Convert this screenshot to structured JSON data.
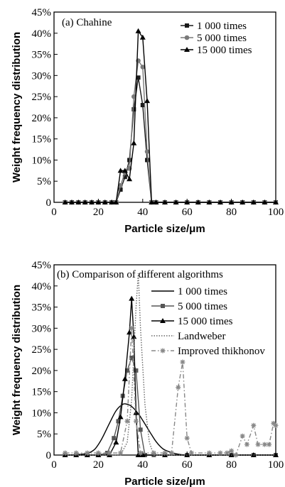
{
  "chart_data": [
    {
      "type": "line",
      "title": "(a)  Chahine",
      "xlabel": "Particle size/μm",
      "ylabel": "Weight frequency distribution",
      "xlim": [
        0,
        100
      ],
      "ylim": [
        0,
        45
      ],
      "x_ticks": [
        "0",
        "20",
        "40",
        "60",
        "80",
        "100"
      ],
      "y_ticks": [
        "0",
        "5%",
        "10%",
        "15%",
        "20%",
        "25%",
        "30%",
        "35%",
        "40%",
        "45%"
      ],
      "legend_position": "top-right",
      "series": [
        {
          "name": "1 000 times",
          "marker": "square",
          "color": "#1a1a1a",
          "points": [
            [
              5,
              0
            ],
            [
              8,
              0
            ],
            [
              11,
              0
            ],
            [
              14,
              0
            ],
            [
              17,
              0
            ],
            [
              20,
              0
            ],
            [
              23,
              0
            ],
            [
              26,
              0
            ],
            [
              28,
              0
            ],
            [
              30,
              3
            ],
            [
              32,
              6
            ],
            [
              34,
              10
            ],
            [
              36,
              22
            ],
            [
              38,
              29.5
            ],
            [
              40,
              23
            ],
            [
              42,
              10
            ],
            [
              44,
              0
            ],
            [
              46,
              0
            ],
            [
              50,
              0
            ],
            [
              55,
              0
            ],
            [
              60,
              0
            ],
            [
              65,
              0
            ],
            [
              70,
              0
            ],
            [
              75,
              0
            ],
            [
              80,
              0
            ],
            [
              85,
              0
            ],
            [
              90,
              0
            ],
            [
              95,
              0
            ],
            [
              100,
              0
            ]
          ]
        },
        {
          "name": "5 000 times",
          "marker": "circle",
          "color": "#7a7a7a",
          "points": [
            [
              5,
              0
            ],
            [
              8,
              0
            ],
            [
              11,
              0
            ],
            [
              14,
              0
            ],
            [
              17,
              0
            ],
            [
              20,
              0
            ],
            [
              23,
              0
            ],
            [
              26,
              0
            ],
            [
              28,
              0
            ],
            [
              30,
              4
            ],
            [
              32,
              7
            ],
            [
              34,
              8
            ],
            [
              36,
              25
            ],
            [
              38,
              33.5
            ],
            [
              40,
              32
            ],
            [
              42,
              12
            ],
            [
              44,
              0
            ],
            [
              46,
              0
            ],
            [
              50,
              0
            ],
            [
              55,
              0
            ],
            [
              60,
              0
            ],
            [
              65,
              0
            ],
            [
              70,
              0
            ],
            [
              75,
              0
            ],
            [
              80,
              0
            ],
            [
              85,
              0
            ],
            [
              90,
              0
            ],
            [
              95,
              0
            ],
            [
              100,
              0
            ]
          ]
        },
        {
          "name": "15 000 times",
          "marker": "triangle",
          "color": "#000000",
          "points": [
            [
              5,
              0
            ],
            [
              8,
              0
            ],
            [
              11,
              0
            ],
            [
              14,
              0
            ],
            [
              17,
              0
            ],
            [
              20,
              0
            ],
            [
              23,
              0
            ],
            [
              26,
              0
            ],
            [
              28,
              0
            ],
            [
              30,
              7.5
            ],
            [
              32,
              7.5
            ],
            [
              34,
              5.5
            ],
            [
              36,
              14
            ],
            [
              38,
              40.5
            ],
            [
              40,
              39
            ],
            [
              42,
              24
            ],
            [
              44,
              0
            ],
            [
              46,
              0
            ],
            [
              50,
              0
            ],
            [
              55,
              0
            ],
            [
              60,
              0
            ],
            [
              65,
              0
            ],
            [
              70,
              0
            ],
            [
              75,
              0
            ],
            [
              80,
              0
            ],
            [
              85,
              0
            ],
            [
              90,
              0
            ],
            [
              95,
              0
            ],
            [
              100,
              0
            ]
          ]
        }
      ]
    },
    {
      "type": "line",
      "title": "(b) Comparison of different algorithms",
      "xlabel": "Particle size/μm",
      "ylabel": "Weight frequency distribution",
      "xlim": [
        0,
        100
      ],
      "ylim": [
        0,
        45
      ],
      "x_ticks": [
        "0",
        "20",
        "40",
        "60",
        "80",
        "100"
      ],
      "y_ticks": [
        "0",
        "5%",
        "10%",
        "15%",
        "20%",
        "25%",
        "30%",
        "35%",
        "40%",
        "45%"
      ],
      "legend_position": "top-right",
      "series": [
        {
          "name": "1 000 times",
          "marker": "none",
          "style": "solid",
          "color": "#000000",
          "points": [
            [
              5,
              0
            ],
            [
              10,
              0.1
            ],
            [
              15,
              0.4
            ],
            [
              18,
              1.2
            ],
            [
              20,
              2.5
            ],
            [
              22,
              4.3
            ],
            [
              25,
              7.5
            ],
            [
              28,
              10.5
            ],
            [
              31,
              12
            ],
            [
              33,
              12
            ],
            [
              35,
              11.5
            ],
            [
              38,
              9.8
            ],
            [
              40,
              8.2
            ],
            [
              42,
              6.5
            ],
            [
              44,
              4.8
            ],
            [
              46,
              3.2
            ],
            [
              48,
              2
            ],
            [
              50,
              1.2
            ],
            [
              55,
              0.3
            ],
            [
              60,
              0
            ],
            [
              70,
              0
            ],
            [
              80,
              0
            ],
            [
              90,
              0
            ],
            [
              100,
              0
            ]
          ]
        },
        {
          "name": "5 000 times",
          "marker": "square",
          "style": "solid",
          "color": "#555555",
          "points": [
            [
              5,
              0
            ],
            [
              10,
              0
            ],
            [
              15,
              0
            ],
            [
              20,
              0
            ],
            [
              24,
              0.5
            ],
            [
              27,
              4
            ],
            [
              29,
              8
            ],
            [
              31,
              14
            ],
            [
              33,
              20
            ],
            [
              35,
              23
            ],
            [
              37,
              20
            ],
            [
              39,
              6
            ],
            [
              41,
              0
            ],
            [
              45,
              0
            ],
            [
              50,
              0
            ],
            [
              60,
              0
            ],
            [
              70,
              0
            ],
            [
              80,
              0
            ],
            [
              90,
              0
            ],
            [
              100,
              0
            ]
          ]
        },
        {
          "name": "15 000 times",
          "marker": "triangle",
          "style": "solid",
          "color": "#000000",
          "points": [
            [
              5,
              0
            ],
            [
              10,
              0
            ],
            [
              15,
              0
            ],
            [
              20,
              0
            ],
            [
              25,
              0
            ],
            [
              28,
              3
            ],
            [
              30,
              9
            ],
            [
              32,
              18
            ],
            [
              34,
              29
            ],
            [
              35,
              37
            ],
            [
              36,
              28
            ],
            [
              37,
              10
            ],
            [
              38,
              0
            ],
            [
              40,
              0
            ],
            [
              50,
              0
            ],
            [
              60,
              0
            ],
            [
              70,
              0
            ],
            [
              80,
              0
            ],
            [
              90,
              0
            ],
            [
              100,
              0
            ]
          ]
        },
        {
          "name": "Landweber",
          "marker": "none",
          "style": "dotted",
          "color": "#666666",
          "points": [
            [
              5,
              0
            ],
            [
              25,
              0
            ],
            [
              30,
              0
            ],
            [
              33,
              3
            ],
            [
              35,
              13
            ],
            [
              37,
              35
            ],
            [
              38,
              43
            ],
            [
              39,
              30
            ],
            [
              41,
              12
            ],
            [
              43,
              3
            ],
            [
              45,
              0
            ],
            [
              60,
              0
            ],
            [
              80,
              0
            ],
            [
              100,
              0
            ]
          ]
        },
        {
          "name": "Improved thikhonov",
          "marker": "asterisk",
          "style": "dashdot",
          "color": "#888888",
          "points": [
            [
              5,
              0.5
            ],
            [
              10,
              0.5
            ],
            [
              15,
              0.5
            ],
            [
              20,
              0.5
            ],
            [
              25,
              0.5
            ],
            [
              30,
              0.5
            ],
            [
              33,
              8
            ],
            [
              35,
              30
            ],
            [
              37,
              8
            ],
            [
              39,
              0.5
            ],
            [
              45,
              0.5
            ],
            [
              50,
              0.5
            ],
            [
              53,
              0.5
            ],
            [
              56,
              16
            ],
            [
              58,
              22
            ],
            [
              60,
              4
            ],
            [
              62,
              0.5
            ],
            [
              70,
              0.5
            ],
            [
              75,
              0.5
            ],
            [
              78,
              0.5
            ],
            [
              80,
              1
            ],
            [
              82,
              0
            ],
            [
              85,
              4.5
            ],
            [
              87,
              2.5
            ],
            [
              90,
              7
            ],
            [
              92,
              2.5
            ],
            [
              95,
              2.5
            ],
            [
              97,
              2.5
            ],
            [
              99,
              7.5
            ],
            [
              100,
              7
            ]
          ]
        }
      ]
    }
  ]
}
